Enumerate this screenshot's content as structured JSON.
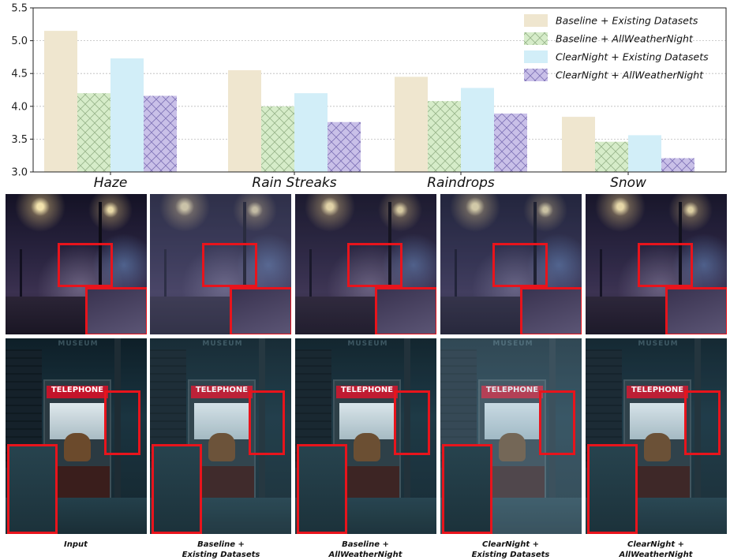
{
  "chart_data": {
    "type": "bar",
    "categories": [
      "Haze",
      "Rain Streaks",
      "Raindrops",
      "Snow"
    ],
    "series": [
      {
        "name": "Baseline + Existing Datasets",
        "values": [
          5.15,
          4.55,
          4.45,
          3.84
        ],
        "color": "#efe6cf",
        "hatch": "none"
      },
      {
        "name": "Baseline + AllWeatherNight",
        "values": [
          4.2,
          4.0,
          4.08,
          3.46
        ],
        "color": "#d6ecc9",
        "hatch": "cross"
      },
      {
        "name": "ClearNight + Existing Datasets",
        "values": [
          4.73,
          4.2,
          4.28,
          3.56
        ],
        "color": "#d2eef8",
        "hatch": "none"
      },
      {
        "name": "ClearNight + AllWeatherNight",
        "values": [
          4.16,
          3.76,
          3.89,
          3.21
        ],
        "color": "#c9c0e8",
        "hatch": "cross"
      }
    ],
    "yticks": [
      "3.0",
      "3.5",
      "4.0",
      "4.5",
      "5.0",
      "5.5"
    ],
    "ylim": [
      3.0,
      5.5
    ],
    "grid": "horizontal dotted",
    "legend_position": "top-right"
  },
  "captions": [
    [
      "Input"
    ],
    [
      "Baseline +",
      "Existing Datasets"
    ],
    [
      "Baseline +",
      "AllWeatherNight"
    ],
    [
      "ClearNight +",
      "Existing Datasets"
    ],
    [
      "ClearNight +",
      "AllWeatherNight"
    ]
  ],
  "scene_text": {
    "booth_sign": "TELEPHONE",
    "building_sign": "MUSEUM"
  }
}
